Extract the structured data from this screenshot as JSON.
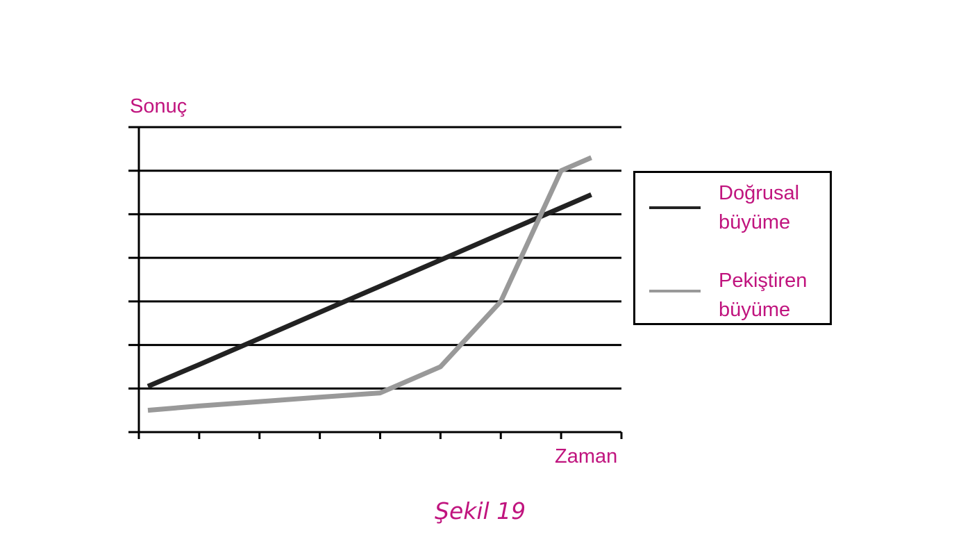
{
  "chart_data": {
    "type": "line",
    "title": "",
    "xlabel": "Zaman",
    "ylabel": "Sonuç",
    "caption": "Şekil 19",
    "x": [
      0.15,
      1,
      2,
      3,
      4,
      5,
      6,
      7,
      7.5
    ],
    "xlim": [
      0,
      8
    ],
    "ylim": [
      0,
      7
    ],
    "x_tick_count": 9,
    "y_grid_count": 8,
    "grid": true,
    "legend_position": "right",
    "series": [
      {
        "name": "Doğrusal büyüme",
        "color": "#222222",
        "values": [
          1.05,
          1.55,
          2.15,
          2.75,
          3.35,
          3.95,
          4.55,
          5.15,
          5.45
        ]
      },
      {
        "name": "Pekiştiren büyüme",
        "color": "#999999",
        "values": [
          0.5,
          0.6,
          0.7,
          0.8,
          0.9,
          1.5,
          3.0,
          6.0,
          6.3
        ]
      }
    ]
  }
}
